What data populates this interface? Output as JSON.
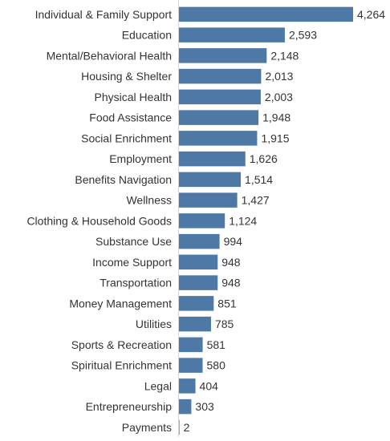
{
  "chart_data": {
    "type": "bar",
    "orientation": "horizontal",
    "categories": [
      "Individual & Family Support",
      "Education",
      "Mental/Behavioral Health",
      "Housing & Shelter",
      "Physical Health",
      "Food Assistance",
      "Social Enrichment",
      "Employment",
      "Benefits Navigation",
      "Wellness",
      "Clothing & Household Goods",
      "Substance Use",
      "Income Support",
      "Transportation",
      "Money Management",
      "Utilities",
      "Sports & Recreation",
      "Spiritual Enrichment",
      "Legal",
      "Entrepreneurship",
      "Payments"
    ],
    "values": [
      4264,
      2593,
      2148,
      2013,
      2003,
      1948,
      1915,
      1626,
      1514,
      1427,
      1124,
      994,
      948,
      948,
      851,
      785,
      581,
      580,
      404,
      303,
      2
    ],
    "value_labels": [
      "4,264",
      "2,593",
      "2,148",
      "2,013",
      "2,003",
      "1,948",
      "1,915",
      "1,626",
      "1,514",
      "1,427",
      "1,124",
      "994",
      "948",
      "948",
      "851",
      "785",
      "581",
      "580",
      "404",
      "303",
      "2"
    ],
    "xlim": [
      0,
      4264
    ],
    "grid": false,
    "legend": "none",
    "colors": {
      "bar": "#4e79a7",
      "axis": "#d4d4d4",
      "text": "#333333"
    }
  }
}
